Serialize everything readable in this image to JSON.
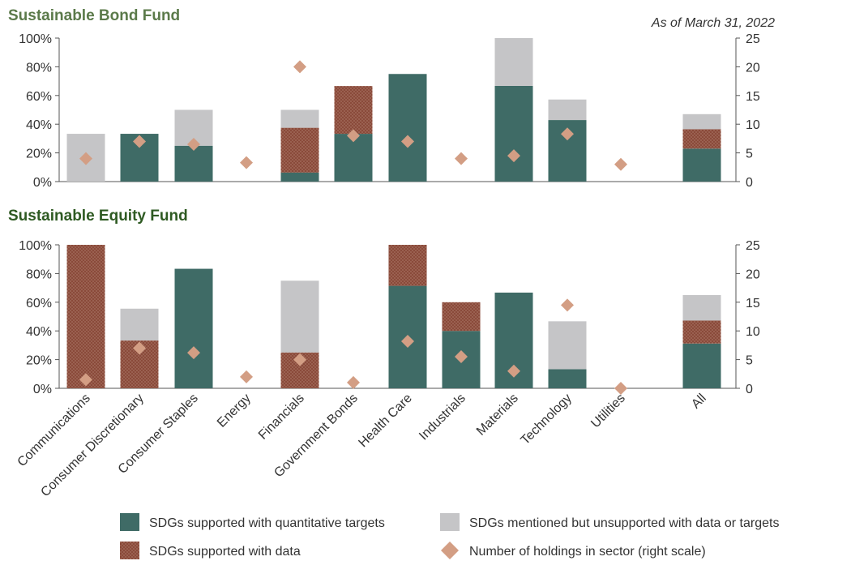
{
  "chart_data": {
    "type": "bar",
    "as_of": "As of March 31, 2022",
    "categories": [
      "Communications",
      "Consumer Discretionary",
      "Consumer Staples",
      "Energy",
      "Financials",
      "Government Bonds",
      "Health Care",
      "Industrials",
      "Materials",
      "Technology",
      "Utilities",
      "All"
    ],
    "left_axis": {
      "ylim": [
        0,
        100
      ],
      "ticks": [
        "0%",
        "20%",
        "40%",
        "60%",
        "80%",
        "100%"
      ]
    },
    "right_axis": {
      "ylim": [
        0,
        25
      ],
      "ticks": [
        "0",
        "5",
        "10",
        "15",
        "20",
        "25"
      ]
    },
    "colors": {
      "quantitative": "#3f6b66",
      "data": "#8a4a3a",
      "mentioned": "#c5c5c7",
      "holdings": "#d39e84"
    },
    "legend": {
      "quantitative": "SDGs supported with quantitative targets",
      "data": "SDGs supported with data",
      "mentioned": "SDGs mentioned but unsupported with data or targets",
      "holdings": "Number of holdings in sector (right scale)"
    },
    "panels": [
      {
        "title": "Sustainable Bond Fund",
        "title_color": "#5b7a4a",
        "series": {
          "quantitative": [
            0,
            33.3,
            25,
            0,
            6.3,
            33.3,
            75,
            0,
            66.7,
            42.9,
            0,
            23
          ],
          "data": [
            0,
            0,
            0,
            0,
            31.2,
            33.3,
            0,
            0,
            0,
            0,
            0,
            13.5
          ],
          "mentioned": [
            33.3,
            0,
            25,
            0,
            12.5,
            0,
            0,
            0,
            33.3,
            14.3,
            0,
            10.5
          ],
          "holdings": [
            4,
            7,
            6.5,
            3.3,
            20,
            8,
            7,
            4,
            4.5,
            8.3,
            3,
            null
          ]
        }
      },
      {
        "title": "Sustainable Equity Fund",
        "title_color": "#2e5a22",
        "series": {
          "quantitative": [
            0,
            0,
            83.3,
            0,
            0,
            0,
            71.4,
            40,
            66.7,
            13.3,
            0,
            31.2
          ],
          "data": [
            100,
            33.3,
            0,
            0,
            25,
            0,
            28.6,
            20,
            0,
            0,
            0,
            16
          ],
          "mentioned": [
            0,
            22.2,
            0,
            0,
            50,
            0,
            0,
            0,
            0,
            33.4,
            0,
            17.8
          ],
          "holdings": [
            1.5,
            7,
            6.2,
            2,
            5,
            1,
            8.2,
            5.5,
            3,
            14.5,
            0,
            null
          ]
        }
      }
    ]
  }
}
